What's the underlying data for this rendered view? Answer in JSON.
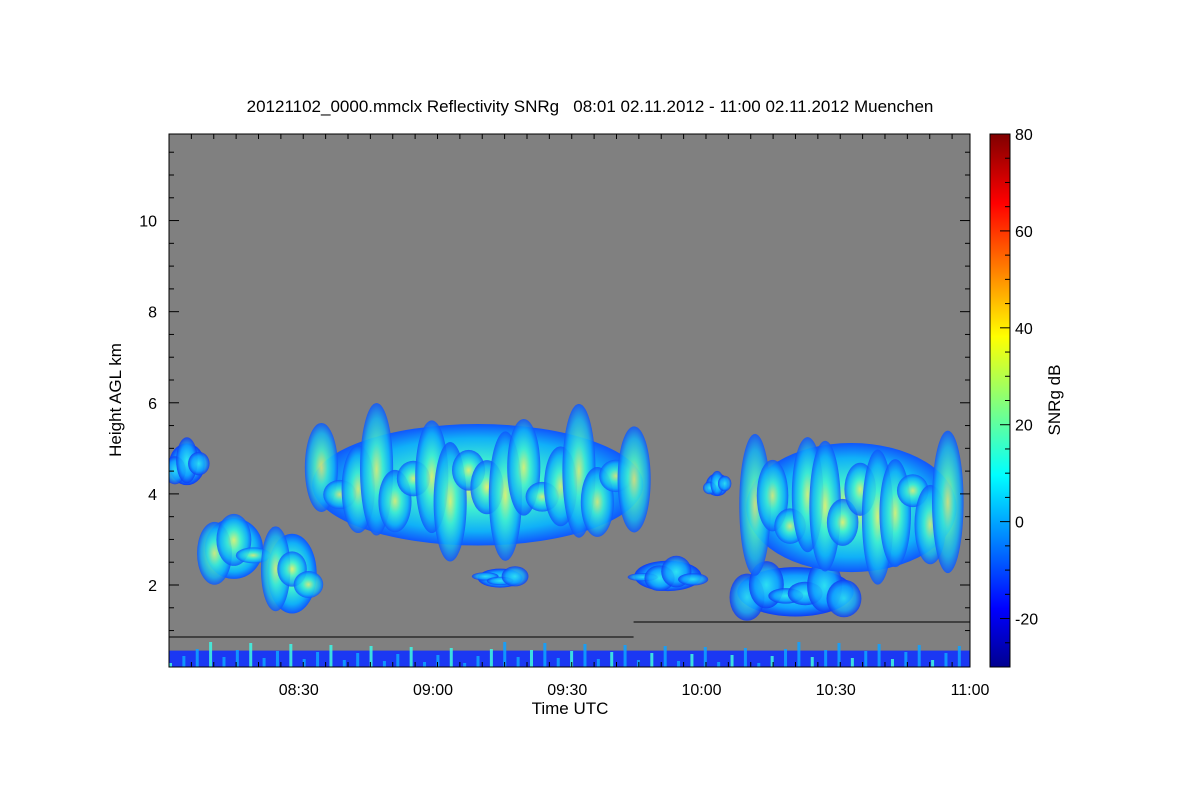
{
  "chart_data": {
    "type": "heatmap",
    "title": "20121102_0000.mmclx Reflectivity SNRg   08:01 02.11.2012 - 11:00 02.11.2012 Muenchen",
    "xlabel": "Time UTC",
    "ylabel": "Height AGL km",
    "colorbar_label": "SNRg dB",
    "x_range": [
      "08:01",
      "11:00"
    ],
    "x_ticks": [
      "08:30",
      "09:00",
      "09:30",
      "10:00",
      "10:30",
      "11:00"
    ],
    "y_range": [
      0.2,
      11.9
    ],
    "y_ticks": [
      2,
      4,
      6,
      8,
      10
    ],
    "colorbar_range": [
      -30,
      80
    ],
    "colorbar_ticks": [
      -20,
      0,
      20,
      40,
      60,
      80
    ],
    "colormap": "jet",
    "background_color": "#808080",
    "cloud_regions": [
      {
        "name": "cloud-0805-4.5km",
        "t_start": "08:01",
        "t_end": "08:09",
        "base_km": 4.1,
        "top_km": 5.2,
        "peak_snr_db": 10
      },
      {
        "name": "cloud-0815-3km",
        "t_start": "08:09",
        "t_end": "08:22",
        "base_km": 2.0,
        "top_km": 3.6,
        "peak_snr_db": 20
      },
      {
        "name": "cloud-0826-2km",
        "t_start": "08:23",
        "t_end": "08:34",
        "base_km": 1.2,
        "top_km": 3.3,
        "peak_snr_db": 20
      },
      {
        "name": "cloud-0900-4km",
        "t_start": "08:33",
        "t_end": "09:47",
        "base_km": 2.6,
        "top_km": 5.8,
        "peak_snr_db": 30
      },
      {
        "name": "cloud-0925-2km",
        "t_start": "09:10",
        "t_end": "09:20",
        "base_km": 1.9,
        "top_km": 2.4,
        "peak_snr_db": 5
      },
      {
        "name": "cloud-0955-2.3km",
        "t_start": "09:45",
        "t_end": "10:00",
        "base_km": 1.8,
        "top_km": 2.6,
        "peak_snr_db": 5
      },
      {
        "name": "cloud-1005-4.2km",
        "t_start": "10:01",
        "t_end": "10:06",
        "base_km": 3.9,
        "top_km": 4.5,
        "peak_snr_db": 5
      },
      {
        "name": "cloud-1020-2km",
        "t_start": "10:08",
        "t_end": "10:34",
        "base_km": 1.2,
        "top_km": 2.5,
        "peak_snr_db": 10
      },
      {
        "name": "cloud-1030-4km",
        "t_start": "10:10",
        "t_end": "10:57",
        "base_km": 2.0,
        "top_km": 5.4,
        "peak_snr_db": 35
      },
      {
        "name": "surface-clutter",
        "t_start": "08:01",
        "t_end": "11:00",
        "base_km": 0.2,
        "top_km": 1.0,
        "peak_snr_db": 15
      }
    ]
  }
}
